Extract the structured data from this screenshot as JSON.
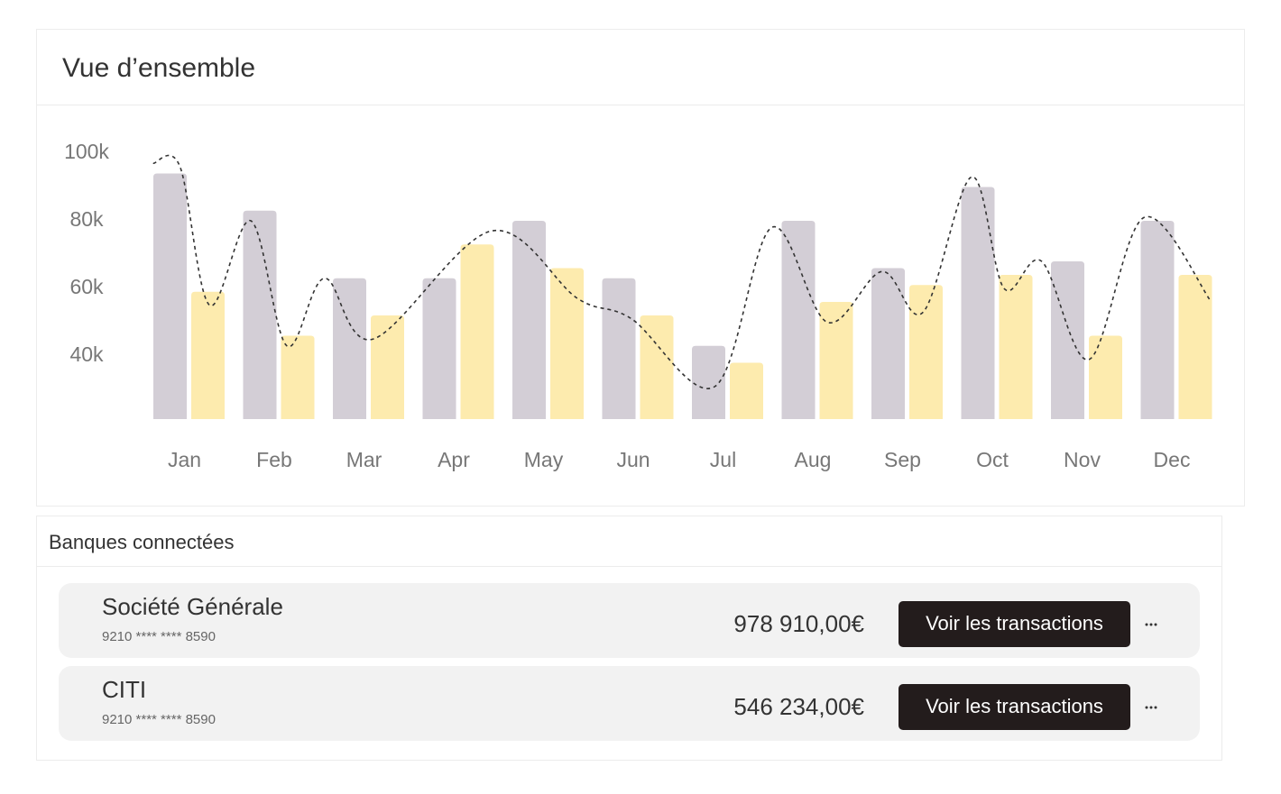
{
  "header": {
    "title": "Vue d’ensemble"
  },
  "chart_data": {
    "type": "bar",
    "categories": [
      "Jan",
      "Feb",
      "Mar",
      "Apr",
      "May",
      "Jun",
      "Jul",
      "Aug",
      "Sep",
      "Oct",
      "Nov",
      "Dec"
    ],
    "series": [
      {
        "color": "#d3ced6",
        "values": [
          94000,
          83000,
          63000,
          63000,
          80000,
          63000,
          43000,
          80000,
          66000,
          90000,
          68000,
          80000
        ]
      },
      {
        "color": "#fdebae",
        "values": [
          59000,
          46000,
          52000,
          73000,
          66000,
          52000,
          38000,
          56000,
          61000,
          64000,
          46000,
          64000
        ]
      }
    ],
    "trend": {
      "type": "line",
      "color": "#333333",
      "x": [
        -0.4,
        -0.1,
        0.23,
        0.69,
        1.09,
        1.51,
        2.05,
        3.37,
        4.33,
        4.93,
        5.86,
        6.49,
        7.11,
        7.72,
        8.18,
        8.72,
        9.08,
        9.5,
        10.03,
        10.64,
        11.39
      ],
      "values": [
        97000,
        96000,
        55000,
        80000,
        43000,
        63000,
        45000,
        77000,
        57000,
        51000,
        31000,
        78000,
        50000,
        65000,
        53000,
        93000,
        60000,
        68000,
        39000,
        81000,
        56000
      ]
    },
    "ylim": [
      21333,
      100000
    ],
    "yticks": [
      {
        "value": 40000,
        "label": "40k"
      },
      {
        "value": 60000,
        "label": "60k"
      },
      {
        "value": 80000,
        "label": "80k"
      },
      {
        "value": 100000,
        "label": "100k"
      }
    ],
    "grid": false
  },
  "banks": {
    "title": "Banques connectées",
    "rows": [
      {
        "name": "Société Générale",
        "account": "9210 **** **** 8590",
        "balance": "978 910,00€",
        "action": "Voir les transactions"
      },
      {
        "name": "CITI",
        "account": "9210 **** **** 8590",
        "balance": "546 234,00€",
        "action": "Voir les transactions"
      }
    ]
  }
}
